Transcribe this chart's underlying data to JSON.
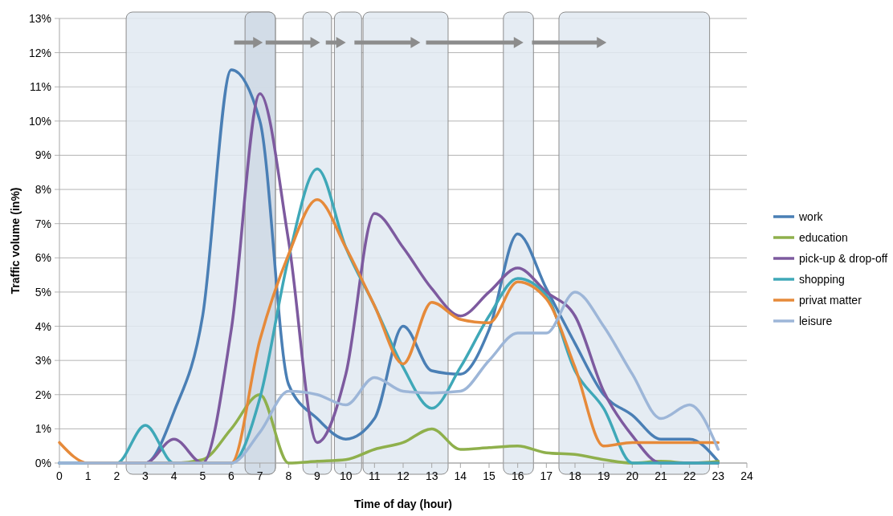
{
  "chart_data": {
    "type": "line",
    "x": [
      0,
      1,
      2,
      3,
      4,
      5,
      6,
      7,
      8,
      9,
      10,
      11,
      12,
      13,
      14,
      15,
      16,
      17,
      18,
      19,
      20,
      21,
      22,
      23
    ],
    "series": [
      {
        "name": "work",
        "color": "#4a7fb5",
        "values": [
          0,
          0,
          0,
          0,
          1.5,
          4.3,
          11.5,
          10.0,
          2.3,
          1.3,
          0.7,
          1.3,
          4.0,
          2.7,
          2.6,
          3.9,
          6.7,
          5.1,
          3.5,
          2.0,
          1.4,
          0.7,
          0.7,
          0.05
        ]
      },
      {
        "name": "education",
        "color": "#8fb04c",
        "values": [
          null,
          null,
          null,
          0,
          0,
          0.1,
          1.0,
          2.0,
          0,
          0.05,
          0.1,
          0.4,
          0.6,
          1.0,
          0.4,
          0.45,
          0.5,
          0.3,
          0.25,
          0.1,
          0,
          0.05,
          0,
          0.05
        ]
      },
      {
        "name": "pick-up & drop-off",
        "color": "#7d5a9f",
        "values": [
          0,
          0,
          0,
          0,
          0.7,
          0,
          3.9,
          10.8,
          6.5,
          0.6,
          2.6,
          7.3,
          6.3,
          5.1,
          4.3,
          5.0,
          5.7,
          5.0,
          4.3,
          2.1,
          0.8,
          0,
          0,
          0
        ]
      },
      {
        "name": "shopping",
        "color": "#3fa8b8",
        "values": [
          0,
          0,
          0,
          1.1,
          0,
          0,
          0,
          1.9,
          6.0,
          8.6,
          6.3,
          4.6,
          2.8,
          1.6,
          2.8,
          4.3,
          5.4,
          4.9,
          2.7,
          1.6,
          0,
          0,
          0,
          0
        ]
      },
      {
        "name": "privat matter",
        "color": "#e68a3a",
        "values": [
          0.6,
          0,
          0,
          0,
          0,
          0,
          0,
          3.6,
          6.1,
          7.7,
          6.3,
          4.6,
          2.9,
          4.7,
          4.2,
          4.1,
          5.3,
          4.8,
          2.8,
          0.5,
          0.6,
          0.6,
          0.6,
          0.6
        ]
      },
      {
        "name": "leisure",
        "color": "#9db6d8",
        "values": [
          0,
          0,
          0,
          0,
          0,
          0,
          0,
          0.9,
          2.1,
          2.0,
          1.7,
          2.5,
          2.1,
          2.05,
          2.1,
          3.0,
          3.8,
          3.8,
          5.0,
          4.0,
          2.6,
          1.3,
          1.7,
          0.4
        ]
      }
    ],
    "xlabel": "Time of day (hour)",
    "ylabel": "Traffic volume (in%)",
    "xlim": [
      0,
      24
    ],
    "ylim": [
      0,
      13
    ],
    "xticks": [
      0,
      1,
      2,
      3,
      4,
      5,
      6,
      7,
      8,
      9,
      10,
      11,
      12,
      13,
      14,
      15,
      16,
      17,
      18,
      19,
      20,
      21,
      22,
      23,
      24
    ],
    "yticks": [
      {
        "value": 0,
        "label": "0%"
      },
      {
        "value": 1,
        "label": "1%"
      },
      {
        "value": 2,
        "label": "2%"
      },
      {
        "value": 3,
        "label": "3%"
      },
      {
        "value": 4,
        "label": "4%"
      },
      {
        "value": 5,
        "label": "5%"
      },
      {
        "value": 6,
        "label": "6%"
      },
      {
        "value": 7,
        "label": "7%"
      },
      {
        "value": 8,
        "label": "8%"
      },
      {
        "value": 9,
        "label": "9%"
      },
      {
        "value": 10,
        "label": "10%"
      },
      {
        "value": 11,
        "label": "11%"
      },
      {
        "value": 12,
        "label": "12%"
      },
      {
        "value": 13,
        "label": "13%"
      }
    ],
    "bands": [
      {
        "axis": "x",
        "from": 2.33,
        "to": 7.54,
        "color": "#e1e9f1"
      },
      {
        "axis": "x",
        "from": 6.48,
        "to": 7.54,
        "color": "#cfd9e4"
      },
      {
        "axis": "x",
        "from": 8.5,
        "to": 9.5,
        "color": "#e1e9f1"
      },
      {
        "axis": "x",
        "from": 9.6,
        "to": 10.55,
        "color": "#e1e9f1"
      },
      {
        "axis": "x",
        "from": 10.6,
        "to": 13.57,
        "color": "#e1e9f1"
      },
      {
        "axis": "x",
        "from": 15.5,
        "to": 16.55,
        "color": "#e1e9f1"
      },
      {
        "axis": "x",
        "from": 17.44,
        "to": 22.7,
        "color": "#e1e9f1"
      }
    ],
    "grid": "y",
    "legend": "right",
    "marker": "none",
    "line_style": "solid"
  }
}
